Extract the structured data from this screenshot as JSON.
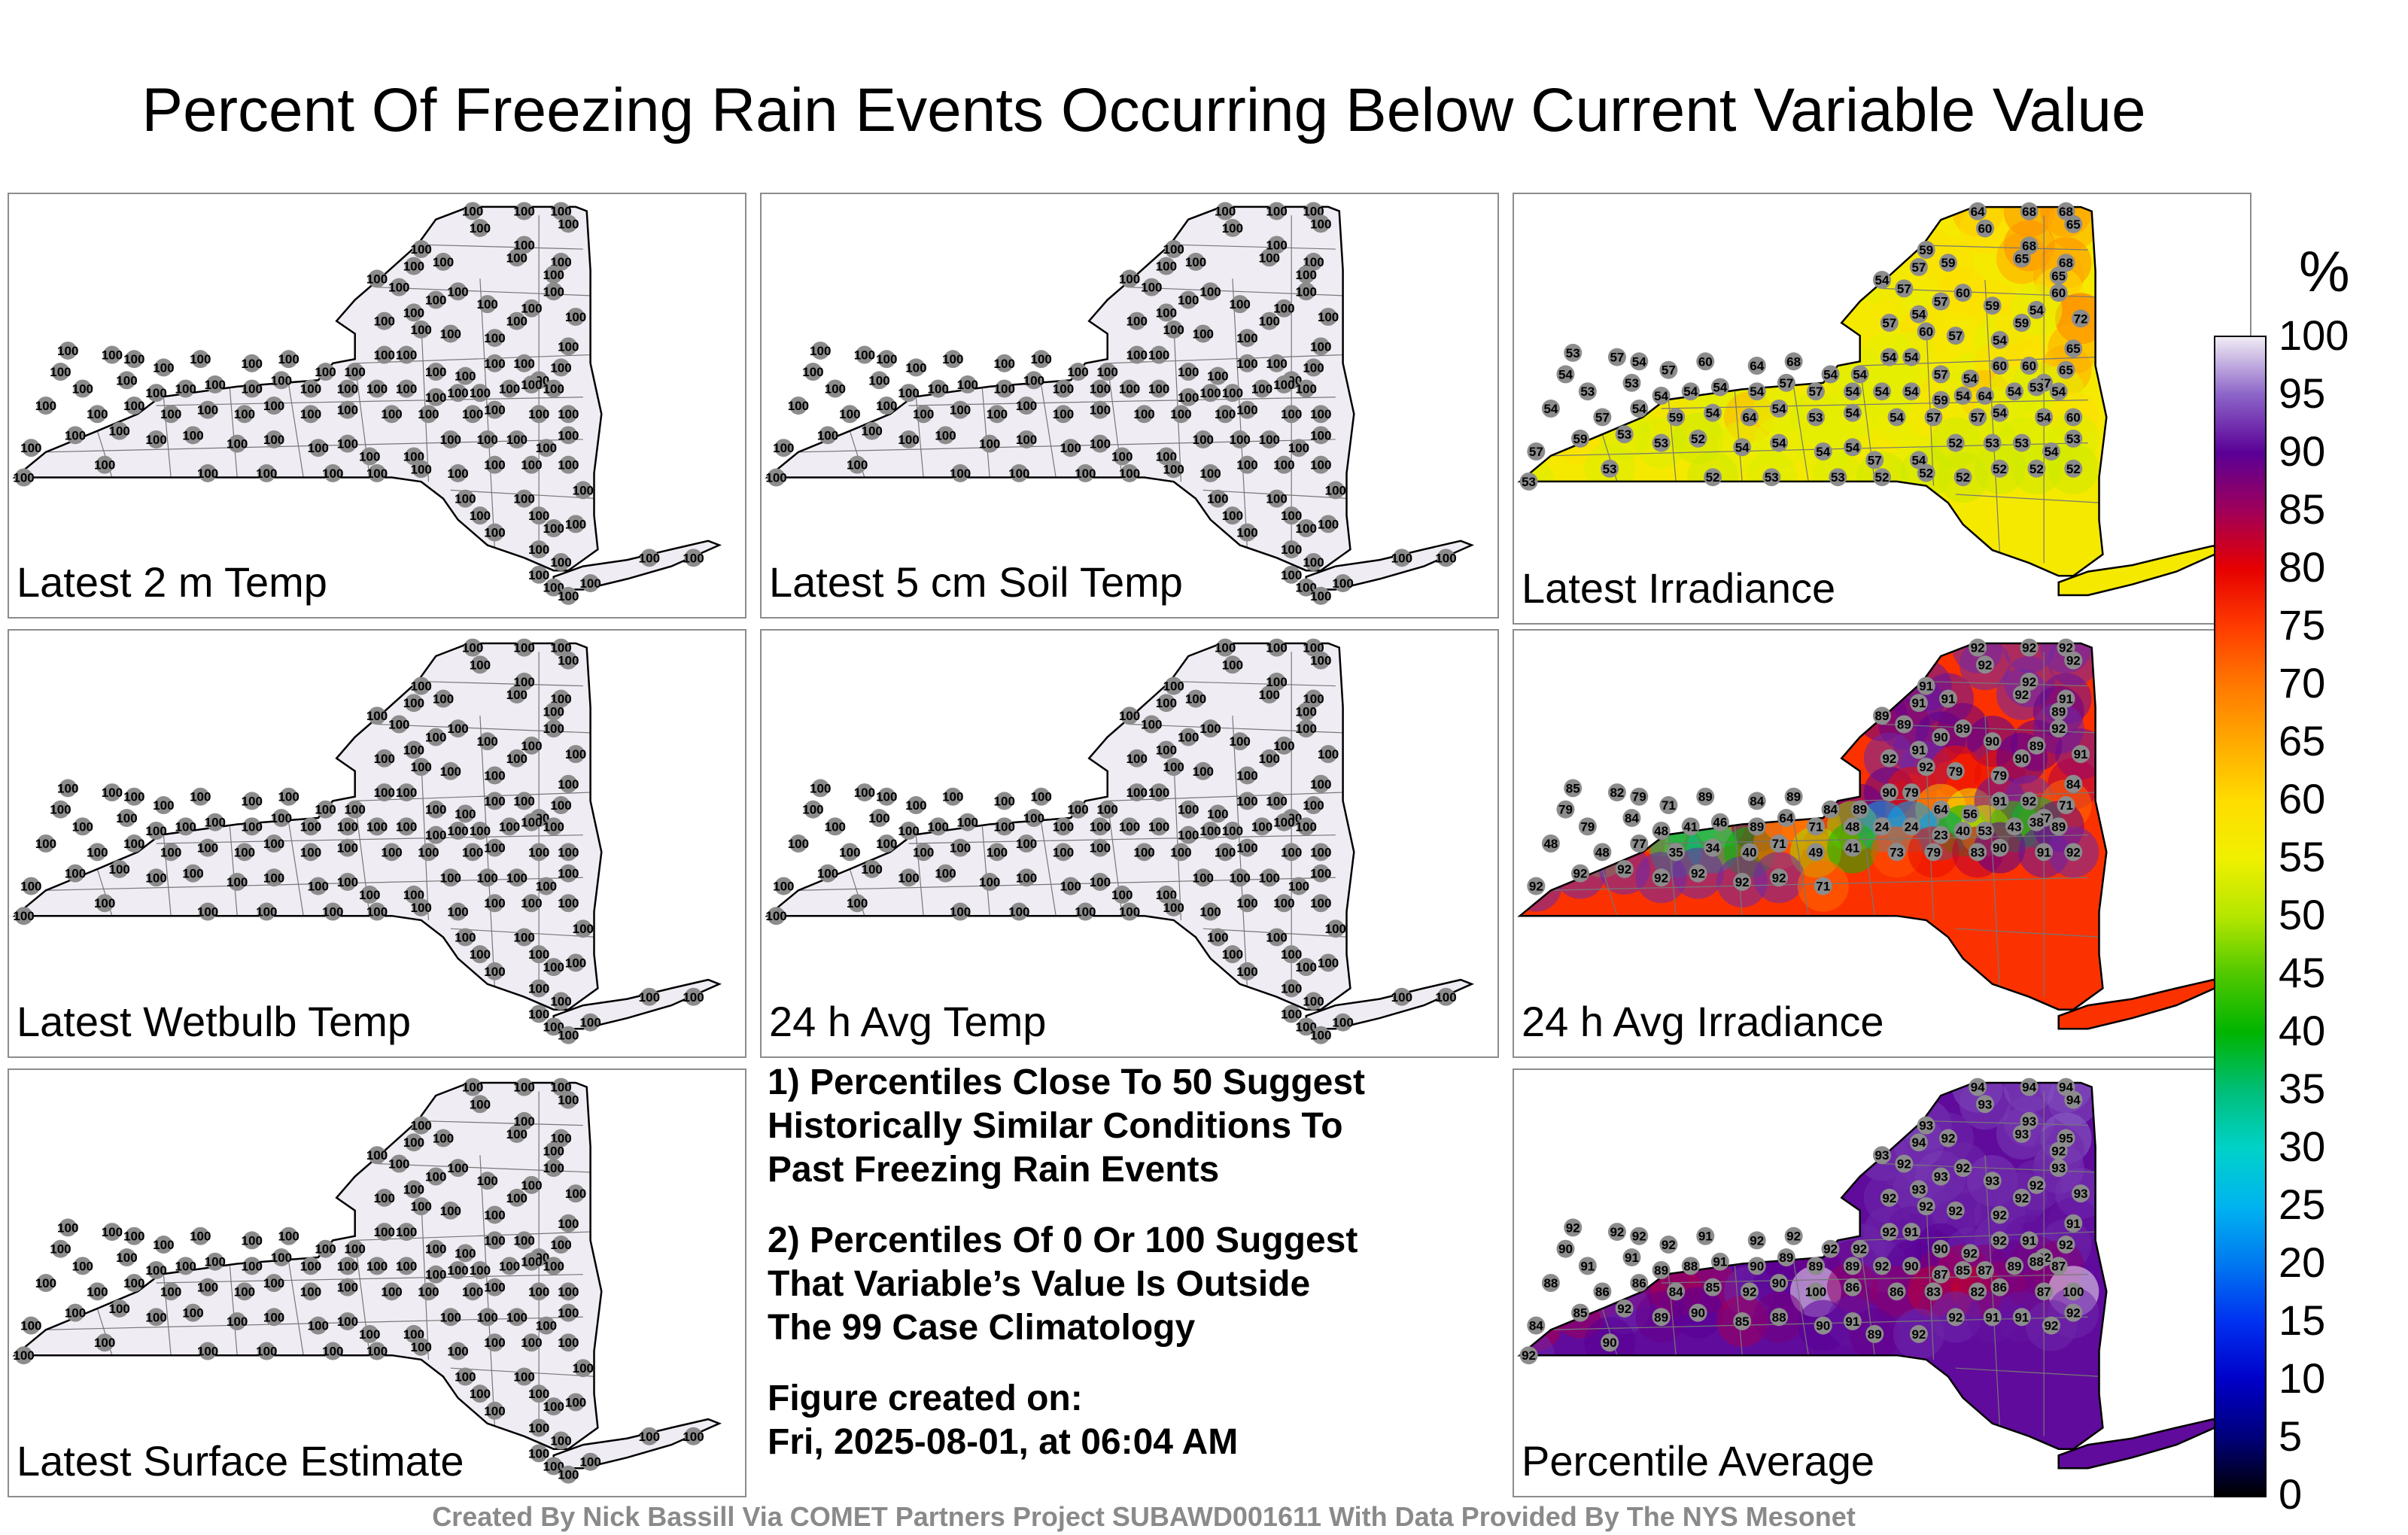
{
  "title": "Percent Of Freezing Rain Events Occurring Below Current Variable Value",
  "panels": [
    {
      "id": "temp2m",
      "label": "Latest 2 m Temp",
      "mode": "uniform",
      "value": 100
    },
    {
      "id": "soil5cm",
      "label": "Latest 5 cm Soil Temp",
      "mode": "uniform",
      "value": 100
    },
    {
      "id": "irradiance",
      "label": "Latest Irradiance",
      "mode": "values",
      "values": [
        64,
        60,
        68,
        68,
        65,
        59,
        57,
        59,
        65,
        68,
        68,
        54,
        57,
        57,
        60,
        59,
        65,
        60,
        72,
        54,
        57,
        60,
        57,
        54,
        59,
        54,
        65,
        53,
        57,
        54,
        57,
        60,
        64,
        68,
        54,
        54,
        54,
        54,
        57,
        54,
        60,
        60,
        57,
        65,
        54,
        53,
        53,
        54,
        54,
        54,
        54,
        57,
        57,
        54,
        54,
        54,
        59,
        54,
        64,
        54,
        53,
        54,
        54,
        57,
        54,
        59,
        54,
        64,
        54,
        53,
        54,
        54,
        57,
        57,
        54,
        54,
        60,
        57,
        59,
        53,
        53,
        52,
        54,
        54,
        54,
        54,
        57,
        54,
        52,
        53,
        53,
        54,
        53,
        53,
        53,
        52,
        53,
        53,
        52,
        52,
        52,
        52,
        52,
        52
      ]
    },
    {
      "id": "wetbulb",
      "label": "Latest Wetbulb Temp",
      "mode": "uniform",
      "value": 100
    },
    {
      "id": "avgtemp24",
      "label": "24 h Avg Temp",
      "mode": "uniform",
      "value": 100
    },
    {
      "id": "avgirr24",
      "label": "24 h Avg Irradiance",
      "mode": "values",
      "values": [
        92,
        92,
        92,
        92,
        92,
        91,
        91,
        91,
        92,
        92,
        91,
        89,
        89,
        90,
        89,
        90,
        89,
        92,
        91,
        91,
        92,
        92,
        79,
        79,
        90,
        89,
        84,
        85,
        82,
        79,
        71,
        89,
        84,
        89,
        84,
        89,
        90,
        79,
        64,
        56,
        91,
        92,
        77,
        71,
        79,
        79,
        84,
        48,
        41,
        46,
        89,
        64,
        71,
        48,
        24,
        24,
        23,
        40,
        53,
        43,
        38,
        89,
        48,
        48,
        77,
        35,
        34,
        40,
        71,
        49,
        41,
        73,
        79,
        83,
        90,
        91,
        92,
        92,
        92,
        92,
        92,
        92,
        92,
        92,
        71
      ]
    },
    {
      "id": "surface",
      "label": "Latest Surface Estimate",
      "mode": "uniform",
      "value": 100
    },
    {
      "id": "average",
      "label": "Percentile Average",
      "mode": "values",
      "values": [
        94,
        93,
        94,
        94,
        94,
        93,
        94,
        92,
        93,
        93,
        95,
        93,
        92,
        93,
        92,
        93,
        92,
        93,
        93,
        93,
        92,
        92,
        92,
        92,
        92,
        92,
        91,
        92,
        92,
        92,
        92,
        91,
        92,
        92,
        92,
        92,
        92,
        91,
        90,
        92,
        92,
        91,
        92,
        92,
        90,
        91,
        91,
        89,
        88,
        91,
        90,
        89,
        89,
        89,
        92,
        90,
        87,
        85,
        87,
        89,
        88,
        87,
        88,
        86,
        86,
        84,
        85,
        92,
        90,
        100,
        86,
        86,
        83,
        82,
        86,
        87,
        100,
        84,
        85,
        92,
        89,
        90,
        85,
        88,
        90,
        91,
        89,
        92,
        92,
        91,
        91,
        92,
        92,
        92,
        90
      ]
    }
  ],
  "notes": [
    "1) Percentiles Close To 50 Suggest\nHistorically Similar Conditions To\nPast Freezing Rain Events",
    "2) Percentiles Of 0 Or 100 Suggest\nThat Variable’s Value Is Outside\nThe 99 Case Climatology"
  ],
  "created_label": "Figure created on:",
  "created_date": "Fri, 2025-08-01, at 06:04 AM",
  "colorbar": {
    "unit": "%",
    "ticks": [
      "100",
      "95",
      "90",
      "85",
      "80",
      "75",
      "70",
      "65",
      "60",
      "55",
      "50",
      "45",
      "40",
      "35",
      "30",
      "25",
      "20",
      "15",
      "10",
      "5",
      "0"
    ],
    "stops": [
      {
        "v": 0,
        "color": "#000000"
      },
      {
        "v": 5,
        "color": "#00007a"
      },
      {
        "v": 10,
        "color": "#0000c8"
      },
      {
        "v": 15,
        "color": "#0030f0"
      },
      {
        "v": 20,
        "color": "#0078f0"
      },
      {
        "v": 25,
        "color": "#00b4f0"
      },
      {
        "v": 30,
        "color": "#00d2c8"
      },
      {
        "v": 35,
        "color": "#00be78"
      },
      {
        "v": 40,
        "color": "#00b400"
      },
      {
        "v": 45,
        "color": "#50c800"
      },
      {
        "v": 50,
        "color": "#b4e600"
      },
      {
        "v": 55,
        "color": "#f0f000"
      },
      {
        "v": 60,
        "color": "#ffdc00"
      },
      {
        "v": 65,
        "color": "#ffaa00"
      },
      {
        "v": 70,
        "color": "#ff7800"
      },
      {
        "v": 75,
        "color": "#ff3c00"
      },
      {
        "v": 80,
        "color": "#e60000"
      },
      {
        "v": 85,
        "color": "#a0005a"
      },
      {
        "v": 90,
        "color": "#5a0096"
      },
      {
        "v": 95,
        "color": "#8c64c8"
      },
      {
        "v": 100,
        "color": "#f0ecf4"
      }
    ]
  },
  "footer": "Created By Nick Bassill Via COMET Partners Project SUBAWD001611 With Data Provided By The NYS Mesonet"
}
